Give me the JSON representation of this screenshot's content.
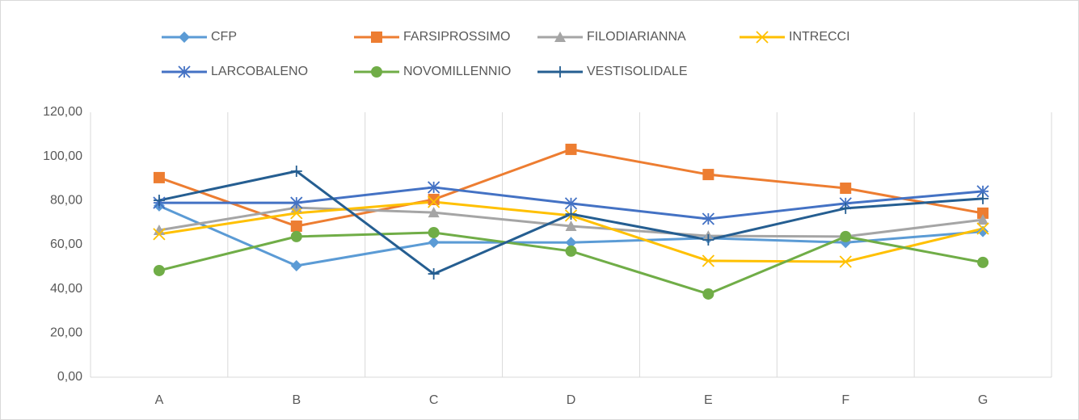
{
  "chart_data": {
    "type": "line",
    "categories": [
      "A",
      "B",
      "C",
      "D",
      "E",
      "F",
      "G"
    ],
    "series": [
      {
        "name": "CFP",
        "color": "#5b9bd5",
        "marker": "diamond",
        "values": [
          77.6,
          50.5,
          61.1,
          61,
          63,
          61,
          66
        ]
      },
      {
        "name": "FARSIPROSSIMO",
        "color": "#ed7d31",
        "marker": "square",
        "values": [
          90.4,
          68.4,
          80.5,
          103.2,
          91.8,
          85.6,
          74.3
        ]
      },
      {
        "name": "FILODIARIANNA",
        "color": "#a5a5a5",
        "marker": "triangle",
        "values": [
          66.6,
          76.8,
          74.6,
          68.4,
          64,
          63.7,
          71.3
        ]
      },
      {
        "name": "INTRECCI",
        "color": "#ffc000",
        "marker": "x",
        "values": [
          64.8,
          74.3,
          79.4,
          73.2,
          52.7,
          52.3,
          67.3
        ]
      },
      {
        "name": "LARCOBALENO",
        "color": "#4472c4",
        "marker": "star",
        "values": [
          79,
          79,
          86,
          78.7,
          71.7,
          78.7,
          84.2
        ]
      },
      {
        "name": "NOVOMILLENNIO",
        "color": "#70ad47",
        "marker": "circle",
        "values": [
          48.3,
          63.7,
          65.5,
          57.1,
          37.7,
          63.7,
          52
        ]
      },
      {
        "name": "VESTISOLIDALE",
        "color": "#255e91",
        "marker": "plus",
        "values": [
          80.1,
          93.3,
          46.8,
          73.9,
          62.2,
          76.5,
          80.9
        ]
      }
    ],
    "ylim": [
      0,
      120
    ],
    "yticks": [
      {
        "value": 0,
        "label": "0,00"
      },
      {
        "value": 20,
        "label": "20,00"
      },
      {
        "value": 40,
        "label": "40,00"
      },
      {
        "value": 60,
        "label": "60,00"
      },
      {
        "value": 80,
        "label": "80,00"
      },
      {
        "value": 100,
        "label": "100,00"
      },
      {
        "value": 120,
        "label": "120,00"
      }
    ],
    "grid": "vertical",
    "legend": "top"
  }
}
